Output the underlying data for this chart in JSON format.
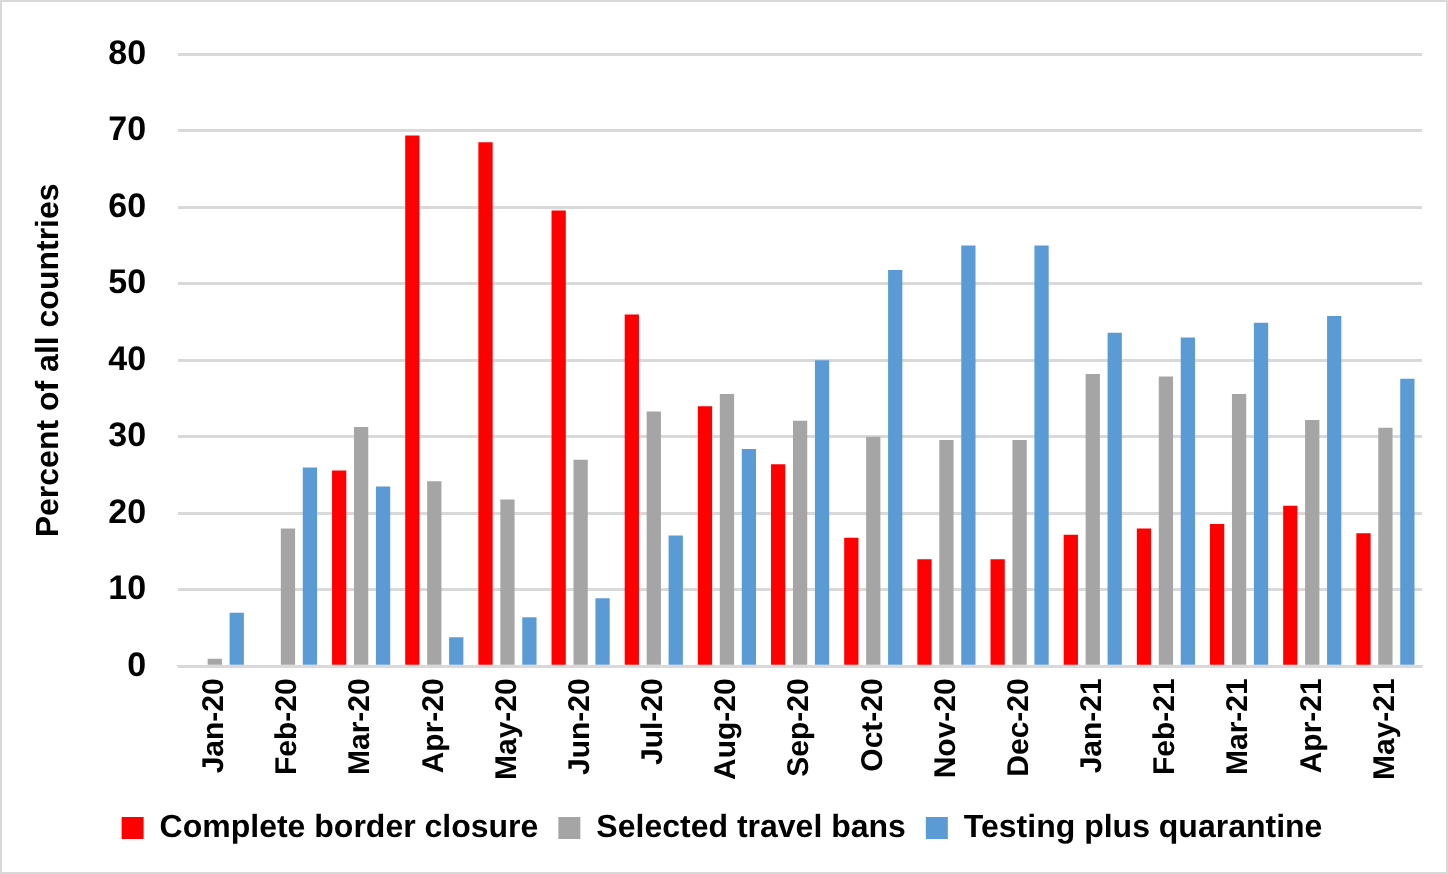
{
  "chart_data": {
    "type": "bar",
    "ylabel": "Percent of all countries",
    "categories": [
      "Jan-20",
      "Feb-20",
      "Mar-20",
      "Apr-20",
      "May-20",
      "Jun-20",
      "Jul-20",
      "Aug-20",
      "Sep-20",
      "Oct-20",
      "Nov-20",
      "Dec-20",
      "Jan-21",
      "Feb-21",
      "Mar-21",
      "Apr-21",
      "May-21"
    ],
    "series": [
      {
        "name": "Complete border closure",
        "color": "#ff0000",
        "values": [
          0,
          0,
          25.6,
          69.4,
          68.5,
          59.6,
          46,
          34,
          26.4,
          16.8,
          14,
          14,
          17.2,
          18,
          18.6,
          21,
          17.4
        ]
      },
      {
        "name": "Selected travel bans",
        "color": "#a5a5a5",
        "values": [
          1,
          18,
          31.3,
          24.2,
          21.8,
          27,
          33.3,
          35.6,
          32.1,
          30,
          29.6,
          29.6,
          38.2,
          37.9,
          35.6,
          32.2,
          31.2
        ]
      },
      {
        "name": "Testing plus quarantine",
        "color": "#5b9bd5",
        "values": [
          7,
          26,
          23.5,
          3.8,
          6.4,
          8.9,
          17.1,
          28.4,
          40,
          51.8,
          55,
          55,
          43.6,
          43,
          44.9,
          45.8,
          37.6
        ]
      }
    ],
    "ylim": [
      0,
      80
    ],
    "yticks": [
      0,
      10,
      20,
      30,
      40,
      50,
      60,
      70,
      80
    ],
    "grid": "y",
    "legend": "bottom"
  }
}
